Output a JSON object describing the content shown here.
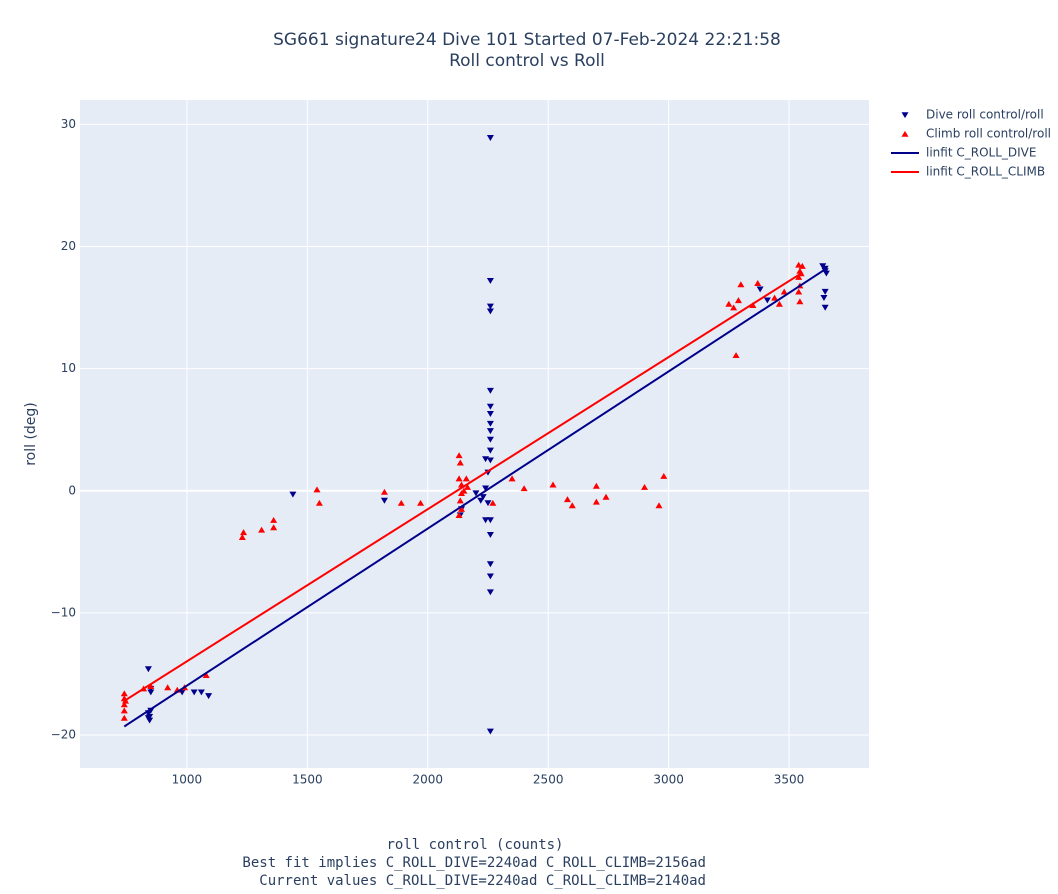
{
  "chart_data": {
    "type": "scatter",
    "title": [
      "SG661 signature24 Dive 101 Started 07-Feb-2024 22:21:58",
      "Roll control vs Roll"
    ],
    "xlabel": "roll control (counts)",
    "ylabel": "roll (deg)",
    "annotations": [
      "Best fit implies C_ROLL_DIVE=2240ad C_ROLL_CLIMB=2156ad",
      "Current values C_ROLL_DIVE=2240ad C_ROLL_CLIMB=2140ad"
    ],
    "xlim": [
      556,
      3832
    ],
    "ylim": [
      -22.7,
      32
    ],
    "xticks": [
      1000,
      1500,
      2000,
      2500,
      3000,
      3500
    ],
    "yticks": [
      {
        "value": -20,
        "label": "−20"
      },
      {
        "value": -10,
        "label": "−10"
      },
      0,
      10,
      20,
      30
    ],
    "grid": true,
    "legend": "outside-right",
    "series": [
      {
        "name": "Dive roll control/roll",
        "color": "#00008b",
        "mode": "markers",
        "marker": "triangle-down",
        "x": [
          840,
          850,
          850,
          840,
          845,
          845,
          850,
          840,
          980,
          1030,
          1060,
          1090,
          1440,
          1820,
          2135,
          2140,
          2230,
          2240,
          2250,
          2240,
          2260,
          2240,
          2250,
          2260,
          2260,
          2260,
          2260,
          2260,
          2260,
          2260,
          2260,
          2260,
          2260,
          2260,
          2260,
          2260,
          2260,
          2260,
          2260,
          2260,
          2200,
          2220,
          3380,
          3410,
          3650,
          3650,
          3655,
          3650,
          3645,
          3650,
          3640
        ],
        "values": [
          -14.6,
          -16.2,
          -16.5,
          -18.2,
          -18.5,
          -18.8,
          -18.0,
          -18.6,
          -16.5,
          -16.5,
          -16.5,
          -16.8,
          -0.3,
          -0.8,
          -2.0,
          -1.5,
          -0.5,
          0.2,
          -1,
          -2.4,
          -2.4,
          2.6,
          1.5,
          -3.6,
          -6,
          -7,
          -8.3,
          -19.7,
          28.9,
          17.2,
          15.1,
          14.7,
          8.2,
          6.9,
          6.3,
          5.5,
          4.9,
          4.2,
          3.3,
          2.5,
          -0.2,
          -0.8,
          16.5,
          15.6,
          18.2,
          18.0,
          17.8,
          16.3,
          15.8,
          15.0,
          18.4
        ]
      },
      {
        "name": "Climb roll control/roll",
        "color": "#ff0000",
        "mode": "markers",
        "marker": "triangle-up",
        "x": [
          740,
          740,
          740,
          740,
          740,
          745,
          820,
          850,
          920,
          960,
          990,
          1080,
          1230,
          1235,
          1310,
          1360,
          1360,
          1540,
          1550,
          1820,
          1890,
          1970,
          2130,
          2135,
          2130,
          2140,
          2140,
          2135,
          2140,
          2130,
          2150,
          2160,
          2165,
          2270,
          2350,
          2400,
          2520,
          2580,
          2600,
          2700,
          2700,
          2740,
          2900,
          2960,
          2980,
          3250,
          3270,
          3280,
          3290,
          3300,
          3350,
          3370,
          3440,
          3460,
          3480,
          3540,
          3545,
          3540,
          3545,
          3540,
          3545,
          3550,
          3555
        ],
        "values": [
          -16.6,
          -17.0,
          -17.5,
          -18.0,
          -18.6,
          -17.2,
          -16.2,
          -16.0,
          -16.1,
          -16.3,
          -16.1,
          -15.1,
          -3.8,
          -3.4,
          -3.2,
          -2.4,
          -3.0,
          0.1,
          -1.0,
          -0.1,
          -1.0,
          -1.0,
          2.9,
          2.3,
          1.0,
          0.5,
          -0.2,
          -0.8,
          -1.5,
          -2.0,
          0.0,
          1.0,
          0.3,
          -1.0,
          1.0,
          0.2,
          0.5,
          -0.7,
          -1.2,
          0.4,
          -0.9,
          -0.5,
          0.3,
          -1.2,
          1.2,
          15.3,
          15.0,
          11.1,
          15.6,
          16.9,
          15.2,
          17.0,
          15.8,
          15.3,
          16.3,
          18.5,
          18.0,
          17.5,
          16.8,
          16.3,
          15.5,
          17.8,
          18.4
        ]
      },
      {
        "name": "linfit C_ROLL_DIVE",
        "color": "#00008b",
        "mode": "lines",
        "x": [
          740,
          3655
        ],
        "values": [
          -19.3,
          18.2
        ]
      },
      {
        "name": "linfit C_ROLL_CLIMB",
        "color": "#ff0000",
        "mode": "lines",
        "x": [
          740,
          3550
        ],
        "values": [
          -17.2,
          17.8
        ]
      }
    ]
  }
}
